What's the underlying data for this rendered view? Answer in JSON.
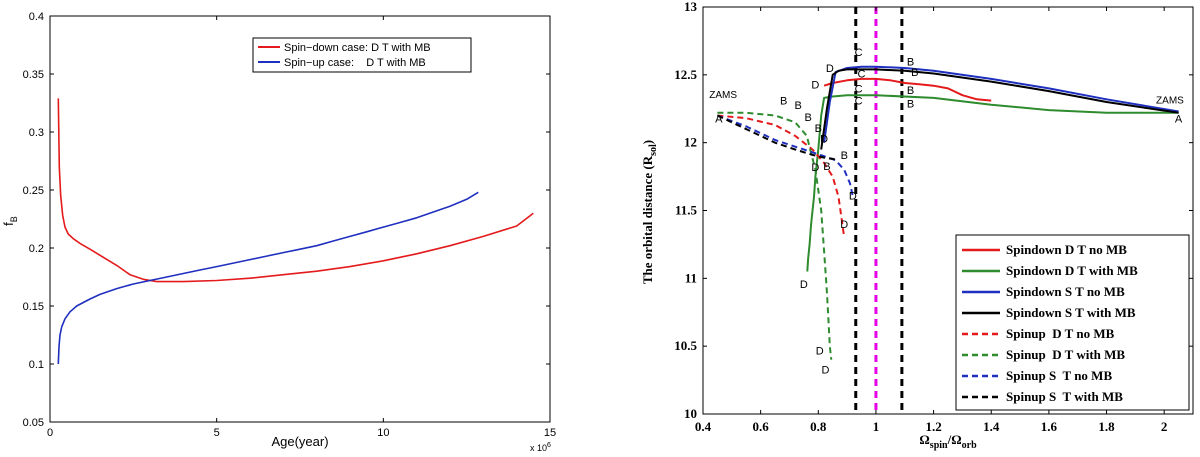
{
  "chart_data": [
    {
      "type": "line",
      "title": "",
      "xlabel": "Age(year)",
      "ylabel": "f",
      "ylabel_sub": "B",
      "x_multiplier": "x 10",
      "x_multiplier_exp": "6",
      "xlim": [
        0,
        15
      ],
      "ylim": [
        0.05,
        0.4
      ],
      "xticks": [
        0,
        5,
        10,
        15
      ],
      "xtick_labels": [
        "0",
        "5",
        "10",
        "15"
      ],
      "yticks": [
        0.05,
        0.1,
        0.15,
        0.2,
        0.25,
        0.3,
        0.35,
        0.4
      ],
      "ytick_labels": [
        "0.05",
        "0.1",
        "0.15",
        "0.2",
        "0.25",
        "0.3",
        "0.35",
        "0.4"
      ],
      "grid": false,
      "legend_position": "top-right",
      "series": [
        {
          "name": "Spin−down case: D T with MB",
          "color": "#e41a1c",
          "style": "solid",
          "x": [
            0.25,
            0.28,
            0.32,
            0.38,
            0.45,
            0.55,
            0.7,
            0.9,
            1.2,
            1.6,
            2.0,
            2.4,
            2.8,
            3.2,
            3.6,
            4.0,
            5.0,
            6.0,
            7.0,
            8.0,
            9.0,
            10.0,
            11.0,
            12.0,
            13.0,
            14.0,
            14.5
          ],
          "y": [
            0.329,
            0.27,
            0.245,
            0.228,
            0.218,
            0.212,
            0.208,
            0.204,
            0.199,
            0.192,
            0.185,
            0.177,
            0.173,
            0.171,
            0.171,
            0.171,
            0.172,
            0.174,
            0.177,
            0.18,
            0.184,
            0.189,
            0.195,
            0.202,
            0.21,
            0.219,
            0.23
          ]
        },
        {
          "name": "Spin−up case:    D T with MB",
          "color": "#1f2fbf",
          "style": "solid",
          "x": [
            0.25,
            0.27,
            0.3,
            0.35,
            0.45,
            0.6,
            0.8,
            1.0,
            1.2,
            1.5,
            2.0,
            2.5,
            3.0,
            3.5,
            4.0,
            4.5,
            5.0,
            5.5,
            6.0,
            6.5,
            7.0,
            7.5,
            8.0,
            8.5,
            9.0,
            9.5,
            10.0,
            10.5,
            11.0,
            11.5,
            12.0,
            12.5,
            12.85
          ],
          "y": [
            0.1,
            0.115,
            0.125,
            0.132,
            0.139,
            0.145,
            0.15,
            0.153,
            0.156,
            0.16,
            0.165,
            0.169,
            0.172,
            0.175,
            0.178,
            0.181,
            0.184,
            0.187,
            0.19,
            0.193,
            0.196,
            0.199,
            0.202,
            0.206,
            0.21,
            0.214,
            0.218,
            0.222,
            0.226,
            0.231,
            0.236,
            0.242,
            0.248
          ]
        }
      ]
    },
    {
      "type": "line",
      "title": "",
      "xlabel": "Ω",
      "xlabel_sub1": "spin",
      "xlabel_mid": "/Ω",
      "xlabel_sub2": "orb",
      "ylabel": "The orbital distance  (R",
      "ylabel_sub": "sol",
      "ylabel_end": ")",
      "xlim": [
        0.4,
        2.1
      ],
      "ylim": [
        10,
        13
      ],
      "xticks": [
        0.4,
        0.6,
        0.8,
        1.0,
        1.2,
        1.4,
        1.6,
        1.8,
        2.0
      ],
      "xtick_labels": [
        "0.4",
        "0.6",
        "0.8",
        "1",
        "1.2",
        "1.4",
        "1.6",
        "1.8",
        "2"
      ],
      "yticks": [
        10,
        10.5,
        11,
        11.5,
        12,
        12.5,
        13
      ],
      "ytick_labels": [
        "10",
        "10.5",
        "11",
        "11.5",
        "12",
        "12.5",
        "13"
      ],
      "grid": false,
      "legend_position": "bottom-right",
      "vertical_lines": [
        {
          "x": 0.93,
          "color": "#000000",
          "style": "dashed"
        },
        {
          "x": 1.0,
          "color": "#e600e6",
          "style": "dashed"
        },
        {
          "x": 1.09,
          "color": "#000000",
          "style": "dashed"
        }
      ],
      "annotations": [
        {
          "text": "ZAMS",
          "x": 0.47,
          "y": 12.33
        },
        {
          "text": "A",
          "x": 0.455,
          "y": 12.15
        },
        {
          "text": "ZAMS",
          "x": 2.02,
          "y": 12.29
        },
        {
          "text": "A",
          "x": 2.05,
          "y": 12.15
        },
        {
          "text": "B",
          "x": 0.68,
          "y": 12.28
        },
        {
          "text": "B",
          "x": 0.73,
          "y": 12.25
        },
        {
          "text": "B",
          "x": 0.765,
          "y": 12.16
        },
        {
          "text": "B",
          "x": 0.8,
          "y": 12.08
        },
        {
          "text": "B",
          "x": 0.89,
          "y": 11.88
        },
        {
          "text": "B",
          "x": 0.83,
          "y": 11.8
        },
        {
          "text": "B",
          "x": 1.12,
          "y": 12.57
        },
        {
          "text": "B",
          "x": 1.135,
          "y": 12.49
        },
        {
          "text": "B",
          "x": 1.12,
          "y": 12.36
        },
        {
          "text": "B",
          "x": 1.12,
          "y": 12.26
        },
        {
          "text": "C",
          "x": 0.94,
          "y": 12.64
        },
        {
          "text": "C",
          "x": 0.95,
          "y": 12.48
        },
        {
          "text": "C",
          "x": 0.94,
          "y": 12.37
        },
        {
          "text": "C",
          "x": 0.94,
          "y": 12.28
        },
        {
          "text": "D",
          "x": 0.84,
          "y": 12.52
        },
        {
          "text": "D",
          "x": 0.79,
          "y": 12.4
        },
        {
          "text": "D",
          "x": 0.82,
          "y": 12.0
        },
        {
          "text": "D",
          "x": 0.79,
          "y": 11.79
        },
        {
          "text": "D",
          "x": 0.92,
          "y": 11.58
        },
        {
          "text": "D",
          "x": 0.89,
          "y": 11.37
        },
        {
          "text": "D",
          "x": 0.75,
          "y": 10.93
        },
        {
          "text": "D",
          "x": 0.805,
          "y": 10.44
        },
        {
          "text": "D",
          "x": 0.825,
          "y": 10.3
        }
      ],
      "series": [
        {
          "name": "Spindown D T no MB",
          "color": "#e41a1c",
          "style": "solid",
          "x": [
            0.82,
            0.85,
            0.9,
            0.95,
            1.0,
            1.05,
            1.1,
            1.15,
            1.2,
            1.25,
            1.3,
            1.35,
            1.4
          ],
          "y": [
            12.42,
            12.44,
            12.46,
            12.47,
            12.47,
            12.46,
            12.44,
            12.43,
            12.42,
            12.4,
            12.35,
            12.32,
            12.31
          ]
        },
        {
          "name": "Spindown D T with MB",
          "color": "#2e8b2e",
          "style": "solid",
          "x": [
            2.05,
            1.8,
            1.6,
            1.4,
            1.2,
            1.0,
            0.9,
            0.85,
            0.82,
            0.81,
            0.8,
            0.79,
            0.785,
            0.775,
            0.77,
            0.765,
            0.762
          ],
          "y": [
            12.22,
            12.22,
            12.24,
            12.28,
            12.33,
            12.35,
            12.35,
            12.34,
            12.33,
            12.2,
            11.95,
            11.75,
            11.6,
            11.4,
            11.25,
            11.15,
            11.05
          ]
        },
        {
          "name": "Spindown S T no MB",
          "color": "#1f2fbf",
          "style": "solid",
          "x": [
            0.82,
            0.84,
            0.86,
            0.9,
            0.95,
            1.0,
            1.1,
            1.2,
            1.4,
            1.6,
            1.8,
            2.05
          ],
          "y": [
            12.0,
            12.3,
            12.52,
            12.55,
            12.56,
            12.56,
            12.55,
            12.53,
            12.47,
            12.4,
            12.32,
            12.23
          ]
        },
        {
          "name": "Spindown S T with MB",
          "color": "#000000",
          "style": "solid",
          "x": [
            0.81,
            0.83,
            0.85,
            0.87,
            0.9,
            0.95,
            1.0,
            1.1,
            1.2,
            1.4,
            1.6,
            1.8,
            2.05
          ],
          "y": [
            11.95,
            12.25,
            12.5,
            12.53,
            12.54,
            12.54,
            12.54,
            12.53,
            12.51,
            12.45,
            12.38,
            12.3,
            12.22
          ]
        },
        {
          "name": "Spinup  D T no MB",
          "color": "#e41a1c",
          "style": "dashed",
          "x": [
            0.45,
            0.55,
            0.65,
            0.72,
            0.78,
            0.82,
            0.85,
            0.87,
            0.88,
            0.89
          ],
          "y": [
            12.2,
            12.18,
            12.13,
            12.05,
            11.95,
            11.85,
            11.75,
            11.6,
            11.45,
            11.3
          ]
        },
        {
          "name": "Spinup  D T with MB",
          "color": "#2e8b2e",
          "style": "dashed",
          "x": [
            0.45,
            0.55,
            0.65,
            0.72,
            0.76,
            0.79,
            0.81,
            0.82,
            0.83,
            0.835,
            0.84,
            0.845
          ],
          "y": [
            12.22,
            12.22,
            12.2,
            12.15,
            12.05,
            11.8,
            11.5,
            11.2,
            10.9,
            10.7,
            10.5,
            10.4
          ]
        },
        {
          "name": "Spinup S  T no MB",
          "color": "#1f2fbf",
          "style": "dashed",
          "x": [
            0.45,
            0.55,
            0.65,
            0.75,
            0.82,
            0.86,
            0.89,
            0.91,
            0.92
          ],
          "y": [
            12.2,
            12.12,
            12.02,
            11.95,
            11.9,
            11.87,
            11.8,
            11.7,
            11.6
          ]
        },
        {
          "name": "Spinup S  T with MB",
          "color": "#000000",
          "style": "dashed",
          "x": [
            0.45,
            0.55,
            0.65,
            0.72,
            0.78,
            0.82,
            0.85,
            0.87
          ],
          "y": [
            12.2,
            12.1,
            12.0,
            11.95,
            11.91,
            11.89,
            11.88,
            11.87
          ]
        }
      ]
    }
  ]
}
